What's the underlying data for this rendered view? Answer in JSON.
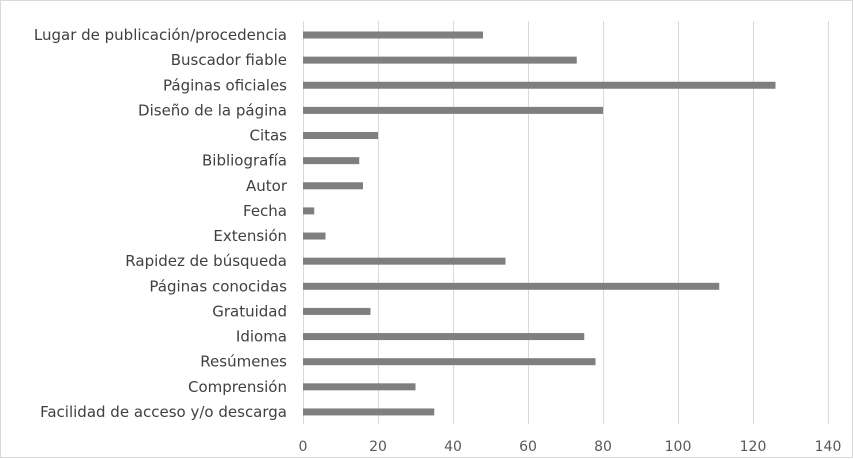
{
  "chart_data": {
    "type": "bar",
    "orientation": "horizontal",
    "title": "",
    "xlabel": "",
    "ylabel": "",
    "xlim": [
      0,
      140
    ],
    "xticks": [
      0,
      20,
      40,
      60,
      80,
      100,
      120,
      140
    ],
    "grid": true,
    "legend": "none",
    "bar_color": "#7f7f7f",
    "categories": [
      "Lugar de publicación/procedencia",
      "Buscador fiable",
      "Páginas oficiales",
      "Diseño de la página",
      "Citas",
      "Bibliografía",
      "Autor",
      "Fecha",
      "Extensión",
      "Rapidez de búsqueda",
      "Páginas conocidas",
      "Gratuidad",
      "Idioma",
      "Resúmenes",
      "Comprensión",
      "Facilidad de acceso y/o  descarga"
    ],
    "values": [
      48,
      73,
      126,
      80,
      20,
      15,
      16,
      3,
      6,
      54,
      111,
      18,
      75,
      78,
      30,
      35
    ]
  }
}
